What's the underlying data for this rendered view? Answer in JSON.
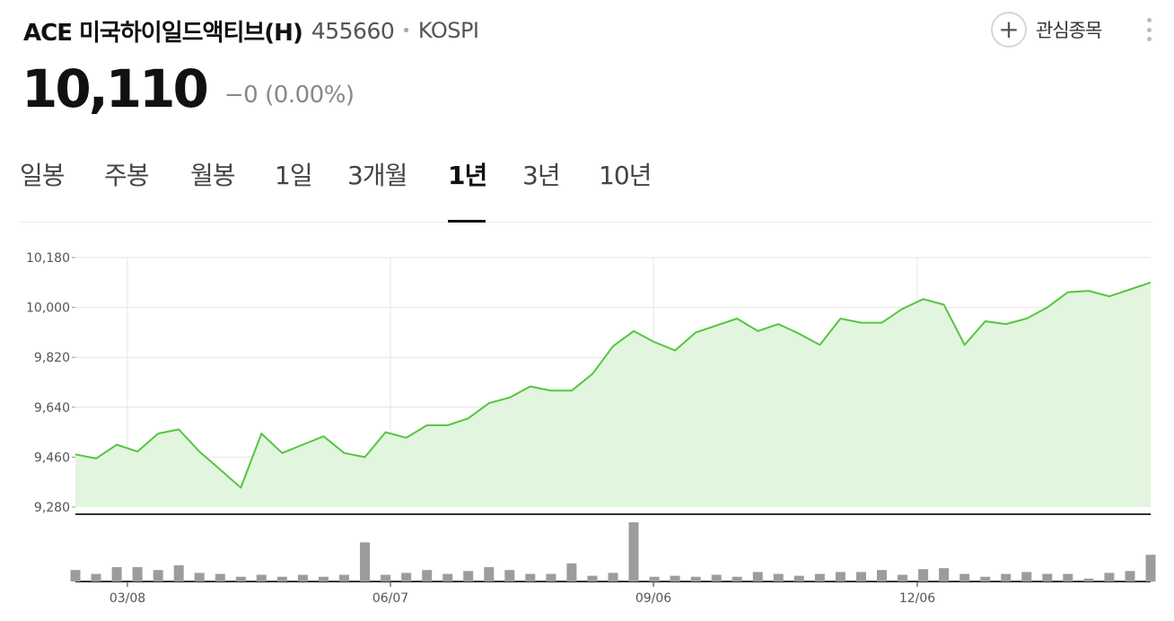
{
  "header": {
    "name": "ACE 미국하이일드액티브(H)",
    "code": "455660",
    "separator": "•",
    "market": "KOSPI",
    "watch_icon": "+",
    "watch_label": "관심종목",
    "more_icon": "more-vertical-icon"
  },
  "price": {
    "current": "10,110",
    "change": "−0",
    "change_pct": "(0.00%)"
  },
  "tabs": [
    "일봉",
    "주봉",
    "월봉",
    "1일",
    "3개월",
    "1년",
    "3년",
    "10년"
  ],
  "active_tab": "1년",
  "colors": {
    "line": "#55c63f",
    "area": "#e2f5de",
    "volume_bar": "#9c9c9c",
    "grid": "#e4e4e4"
  },
  "chart_data": {
    "type": "area",
    "y_ticks": [
      "10,180",
      "10,000",
      "9,820",
      "9,640",
      "9,460",
      "9,280"
    ],
    "ylim": [
      9280,
      10180
    ],
    "grid": true,
    "x_labels": [
      "03/08",
      "06/07",
      "09/06",
      "12/06"
    ],
    "price_series": {
      "name": "",
      "values": [
        9470,
        9455,
        9505,
        9480,
        9545,
        9560,
        9480,
        9415,
        9350,
        9545,
        9475,
        9505,
        9535,
        9475,
        9460,
        9550,
        9530,
        9575,
        9575,
        9600,
        9655,
        9675,
        9715,
        9700,
        9700,
        9760,
        9860,
        9915,
        9875,
        9845,
        9910,
        9935,
        9960,
        9915,
        9940,
        9905,
        9865,
        9960,
        9945,
        9945,
        9995,
        10030,
        10010,
        9865,
        9950,
        9940,
        9960,
        10000,
        10055,
        10060,
        10040,
        10065,
        10090
      ]
    },
    "volume_series": {
      "name": "",
      "values": [
        12,
        8,
        15,
        15,
        12,
        17,
        9,
        8,
        5,
        7,
        5,
        7,
        5,
        7,
        41,
        7,
        9,
        12,
        8,
        11,
        15,
        12,
        8,
        8,
        19,
        6,
        9,
        62,
        5,
        6,
        5,
        7,
        5,
        10,
        8,
        6,
        8,
        10,
        10,
        12,
        7,
        13,
        14,
        8,
        5,
        8,
        10,
        8,
        8,
        3,
        9,
        11,
        28
      ]
    }
  }
}
